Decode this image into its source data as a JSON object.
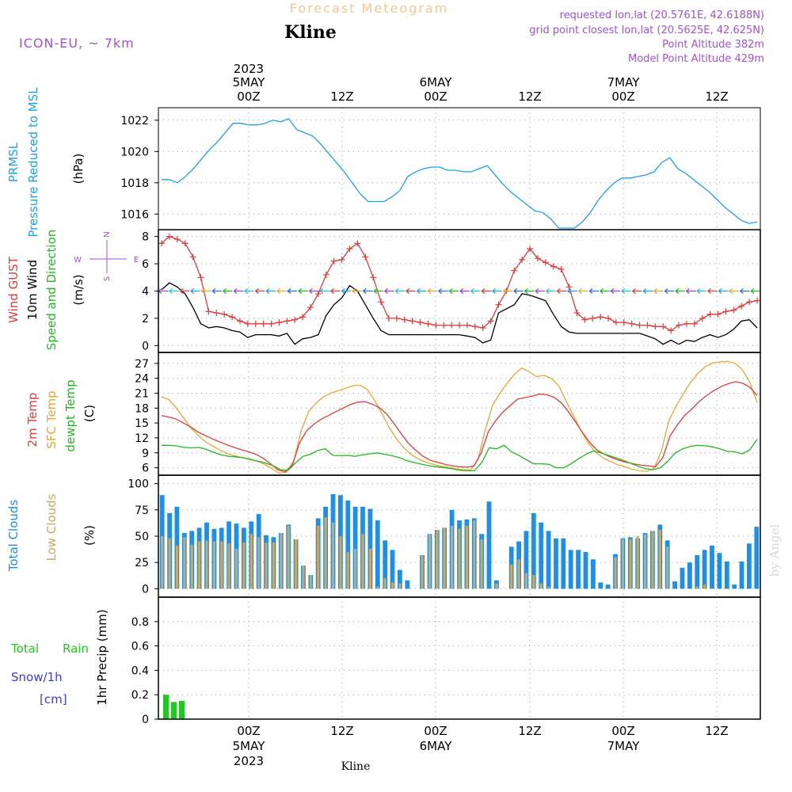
{
  "header": {
    "title_top": "Forecast Meteogram",
    "location": "Kline",
    "model": "ICON-EU, ~ 7km",
    "requested": "requested lon,lat (20.5761E, 42.6188N)",
    "grid_point": "grid point closest lon,lat (20.5625E, 42.625N)",
    "point_alt": "Point Altitude 382m",
    "model_alt": "Model Point Altitude 429m",
    "footer": "Kline",
    "credit": "by Angel"
  },
  "time_axis": {
    "ticks": [
      "00Z",
      "12Z",
      "00Z",
      "12Z",
      "00Z",
      "12Z"
    ],
    "day_labels": [
      "5MAY",
      "6MAY",
      "7MAY"
    ],
    "year": "2023"
  },
  "panel_labels": {
    "p1": [
      "PRMSL",
      "Pressure Reduced to MSL",
      "(hPa)"
    ],
    "p2": [
      "Wind GUST",
      "10m Wind",
      "Speed and Direction",
      "(m/s)"
    ],
    "p3": [
      "2m Temp",
      "SFC Temp",
      "dewpt Temp",
      "(C)"
    ],
    "p4": [
      "Total Clouds",
      "Low Clouds",
      "(%)"
    ],
    "p5": [
      "Total",
      "Rain",
      "Snow/1h",
      "[cm]",
      "1hr Precip (mm)"
    ],
    "compass": {
      "n": "N",
      "s": "S",
      "w": "W",
      "e": "E"
    }
  },
  "colors": {
    "pressure": "#1ea0e6",
    "gust": "#e03c3c",
    "wind": "#000000",
    "temp2m": "#e03c3c",
    "sfc": "#e6a830",
    "dewpt": "#22b822",
    "total_clouds": "#1e8fe6",
    "low_clouds": "#c8aa64",
    "rain": "#22c822",
    "snow": "#3c3cdc",
    "meta": "#a050dc",
    "title_top": "#f0c896"
  },
  "chart_data": [
    {
      "type": "line",
      "name": "pressure",
      "x_hours_from": "2023-05-04 15Z",
      "ylim": [
        1015,
        1022.8
      ],
      "yticks": [
        1016,
        1018,
        1020,
        1022
      ],
      "series": [
        {
          "values": [
            1018.2,
            1018.2,
            1018.0,
            1018.4,
            1018.9,
            1019.5,
            1020.1,
            1020.6,
            1021.2,
            1021.8,
            1021.8,
            1021.7,
            1021.7,
            1021.8,
            1022.0,
            1021.9,
            1022.1,
            1021.4,
            1021.2,
            1021.0,
            1020.5,
            1019.9,
            1019.3,
            1018.7,
            1018.0,
            1017.3,
            1016.8,
            1016.8,
            1016.8,
            1017.1,
            1017.5,
            1018.4,
            1018.7,
            1018.9,
            1019.0,
            1019.0,
            1018.8,
            1018.8,
            1018.7,
            1018.7,
            1018.9,
            1019.1,
            1018.5,
            1017.9,
            1017.4,
            1017.0,
            1016.6,
            1016.2,
            1016.1,
            1015.7,
            1015.1,
            1015.1,
            1015.1,
            1015.5,
            1016.1,
            1016.9,
            1017.5,
            1018.0,
            1018.3,
            1018.3,
            1018.4,
            1018.5,
            1018.7,
            1019.3,
            1019.6,
            1018.9,
            1018.6,
            1018.2,
            1017.8,
            1017.4,
            1016.9,
            1016.4,
            1016.0,
            1015.6,
            1015.4,
            1015.5
          ]
        }
      ]
    },
    {
      "type": "line",
      "name": "wind",
      "ylim": [
        -0.5,
        8.5
      ],
      "yticks": [
        0,
        2,
        4,
        6,
        8
      ],
      "series": [
        {
          "name": "Wind GUST",
          "values": [
            7.5,
            8.0,
            7.8,
            7.5,
            6.5,
            5.0,
            2.5,
            2.4,
            2.3,
            2.1,
            1.8,
            1.6,
            1.6,
            1.6,
            1.6,
            1.7,
            1.8,
            1.9,
            2.1,
            2.8,
            3.8,
            5.2,
            6.2,
            6.3,
            7.1,
            7.5,
            6.5,
            5.0,
            3.2,
            2.0,
            2.0,
            1.9,
            1.8,
            1.7,
            1.6,
            1.5,
            1.5,
            1.5,
            1.5,
            1.5,
            1.4,
            1.3,
            1.8,
            3.0,
            4.0,
            5.5,
            6.3,
            7.1,
            6.4,
            6.1,
            5.8,
            5.6,
            4.3,
            2.4,
            1.9,
            2.0,
            2.1,
            2.0,
            1.7,
            1.7,
            1.6,
            1.5,
            1.5,
            1.4,
            1.4,
            1.1,
            1.5,
            1.6,
            1.6,
            2.0,
            2.3,
            2.3,
            2.5,
            2.6,
            2.9,
            3.2,
            3.3
          ]
        },
        {
          "name": "10m Wind",
          "values": [
            4.1,
            4.6,
            4.3,
            3.8,
            2.8,
            1.6,
            1.3,
            1.4,
            1.3,
            1.1,
            1.0,
            0.6,
            0.8,
            0.8,
            0.8,
            0.7,
            0.9,
            0.1,
            0.5,
            0.6,
            0.8,
            2.2,
            3.0,
            3.5,
            4.4,
            4.0,
            3.0,
            2.0,
            1.1,
            0.8,
            0.8,
            0.8,
            0.8,
            0.8,
            0.8,
            0.8,
            0.8,
            0.8,
            0.8,
            0.7,
            0.6,
            0.2,
            0.4,
            2.4,
            2.7,
            3.0,
            3.8,
            3.7,
            3.5,
            3.3,
            2.3,
            1.4,
            1.0,
            0.9,
            0.9,
            0.9,
            0.9,
            0.9,
            0.9,
            0.9,
            0.9,
            0.9,
            0.7,
            0.5,
            0.1,
            0.4,
            0.1,
            0.4,
            0.3,
            0.6,
            0.8,
            0.6,
            0.8,
            1.2,
            1.8,
            1.9,
            1.3
          ]
        }
      ]
    },
    {
      "type": "line",
      "name": "temperature",
      "ylim": [
        4.5,
        29.2
      ],
      "yticks": [
        6,
        9,
        12,
        15,
        18,
        21,
        24,
        27
      ],
      "series": [
        {
          "name": "2m Temp",
          "values": [
            16.5,
            16.2,
            15.8,
            15.0,
            14.2,
            13.2,
            12.5,
            11.8,
            11.2,
            10.6,
            10.1,
            9.6,
            9.2,
            8.7,
            7.9,
            6.8,
            5.6,
            5.2,
            6.5,
            11.0,
            13.5,
            14.8,
            15.8,
            16.5,
            17.3,
            18.0,
            18.7,
            19.2,
            19.3,
            18.8,
            18.1,
            16.8,
            14.9,
            12.8,
            10.9,
            9.5,
            8.3,
            7.5,
            7.1,
            6.7,
            6.4,
            6.2,
            6.1,
            6.3,
            9.0,
            13.3,
            15.5,
            17.2,
            18.5,
            19.8,
            20.1,
            20.4,
            20.8,
            20.7,
            20.2,
            19.1,
            17.3,
            15.2,
            13.0,
            11.0,
            9.5,
            8.7,
            8.0,
            7.5,
            7.1,
            6.8,
            6.5,
            6.4,
            6.2,
            8.0,
            12.4,
            14.6,
            16.5,
            17.8,
            19.3,
            20.5,
            21.5,
            22.3,
            22.9,
            23.3,
            23.0,
            22.2,
            20.5
          ]
        },
        {
          "name": "SFC Temp",
          "values": [
            20.3,
            19.7,
            18.0,
            16.0,
            14.0,
            12.5,
            11.2,
            10.3,
            9.5,
            8.8,
            8.4,
            8.0,
            7.8,
            7.3,
            6.7,
            5.8,
            4.9,
            5.1,
            7.5,
            13.5,
            17.3,
            19.0,
            20.3,
            21.0,
            21.5,
            22.0,
            22.5,
            22.6,
            21.7,
            19.5,
            16.8,
            14.0,
            11.7,
            9.9,
            8.6,
            7.7,
            7.1,
            6.7,
            6.3,
            6.1,
            5.8,
            5.6,
            5.6,
            7.5,
            13.5,
            18.5,
            21.0,
            23.0,
            24.8,
            26.1,
            25.3,
            24.3,
            24.6,
            24.0,
            22.5,
            19.5,
            16.5,
            13.6,
            11.0,
            9.2,
            8.0,
            7.3,
            6.6,
            6.2,
            5.7,
            5.4,
            5.3,
            5.9,
            9.5,
            15.5,
            18.5,
            21.0,
            23.3,
            25.1,
            26.4,
            27.1,
            27.3,
            27.4,
            27.0,
            25.7,
            23.2,
            19.1
          ]
        },
        {
          "name": "dewpt Temp",
          "values": [
            10.5,
            10.5,
            10.4,
            10.1,
            10.0,
            10.1,
            9.7,
            9.1,
            8.6,
            8.3,
            8.2,
            8.0,
            7.6,
            7.3,
            6.9,
            6.4,
            5.6,
            5.5,
            7.0,
            8.3,
            8.7,
            9.5,
            9.8,
            8.5,
            8.4,
            8.5,
            8.3,
            8.6,
            8.8,
            9.0,
            8.7,
            8.4,
            8.0,
            7.4,
            7.0,
            6.7,
            6.4,
            6.2,
            6.0,
            5.8,
            5.5,
            5.4,
            5.4,
            7.0,
            10.0,
            9.8,
            10.5,
            9.2,
            8.5,
            7.6,
            6.8,
            6.8,
            6.7,
            6.0,
            6.0,
            6.8,
            7.8,
            8.7,
            9.4,
            9.0,
            8.5,
            8.0,
            7.5,
            6.9,
            6.3,
            5.8,
            5.6,
            6.0,
            7.3,
            9.0,
            9.8,
            10.3,
            10.5,
            10.4,
            10.2,
            9.8,
            9.3,
            9.2,
            8.8,
            9.6,
            11.7
          ]
        }
      ]
    },
    {
      "type": "bar",
      "name": "clouds",
      "ylim": [
        -8,
        108
      ],
      "yticks": [
        0,
        25,
        50,
        75,
        100
      ],
      "series": [
        {
          "name": "Total Clouds",
          "values": [
            89,
            72,
            78,
            53,
            55,
            58,
            63,
            57,
            58,
            64,
            62,
            58,
            64,
            71,
            51,
            49,
            53,
            61,
            47,
            22,
            13,
            67,
            78,
            90,
            89,
            84,
            78,
            78,
            76,
            65,
            46,
            37,
            18,
            8,
            0,
            32,
            52,
            56,
            58,
            75,
            65,
            66,
            67,
            52,
            83,
            8,
            0,
            40,
            45,
            55,
            72,
            63,
            55,
            48,
            48,
            37,
            37,
            35,
            28,
            6,
            4,
            33,
            48,
            49,
            48,
            53,
            55,
            61,
            46,
            7,
            20,
            25,
            32,
            37,
            41,
            34,
            26,
            4,
            26,
            43,
            59
          ]
        },
        {
          "name": "Low Clouds",
          "values": [
            50,
            48,
            41,
            49,
            42,
            45,
            46,
            45,
            45,
            43,
            38,
            44,
            52,
            49,
            44,
            44,
            53,
            60,
            47,
            22,
            13,
            60,
            68,
            63,
            50,
            35,
            38,
            52,
            38,
            2,
            10,
            6,
            5,
            0,
            0,
            32,
            52,
            56,
            58,
            60,
            57,
            60,
            65,
            47,
            0,
            5,
            0,
            23,
            28,
            15,
            13,
            5,
            2,
            0,
            0,
            0,
            0,
            0,
            0,
            0,
            0,
            30,
            47,
            47,
            50,
            52,
            55,
            56,
            40,
            0,
            0,
            0,
            2,
            4,
            0,
            0,
            0,
            0,
            0,
            0,
            0
          ]
        }
      ]
    },
    {
      "type": "bar",
      "name": "precip",
      "ylim": [
        0,
        1.0
      ],
      "yticks": [
        "0",
        "0.2",
        "0.4",
        "0.6",
        "0.8"
      ],
      "series": [
        {
          "name": "Rain",
          "values": [
            0.2,
            0.14,
            0.15
          ]
        }
      ]
    }
  ]
}
